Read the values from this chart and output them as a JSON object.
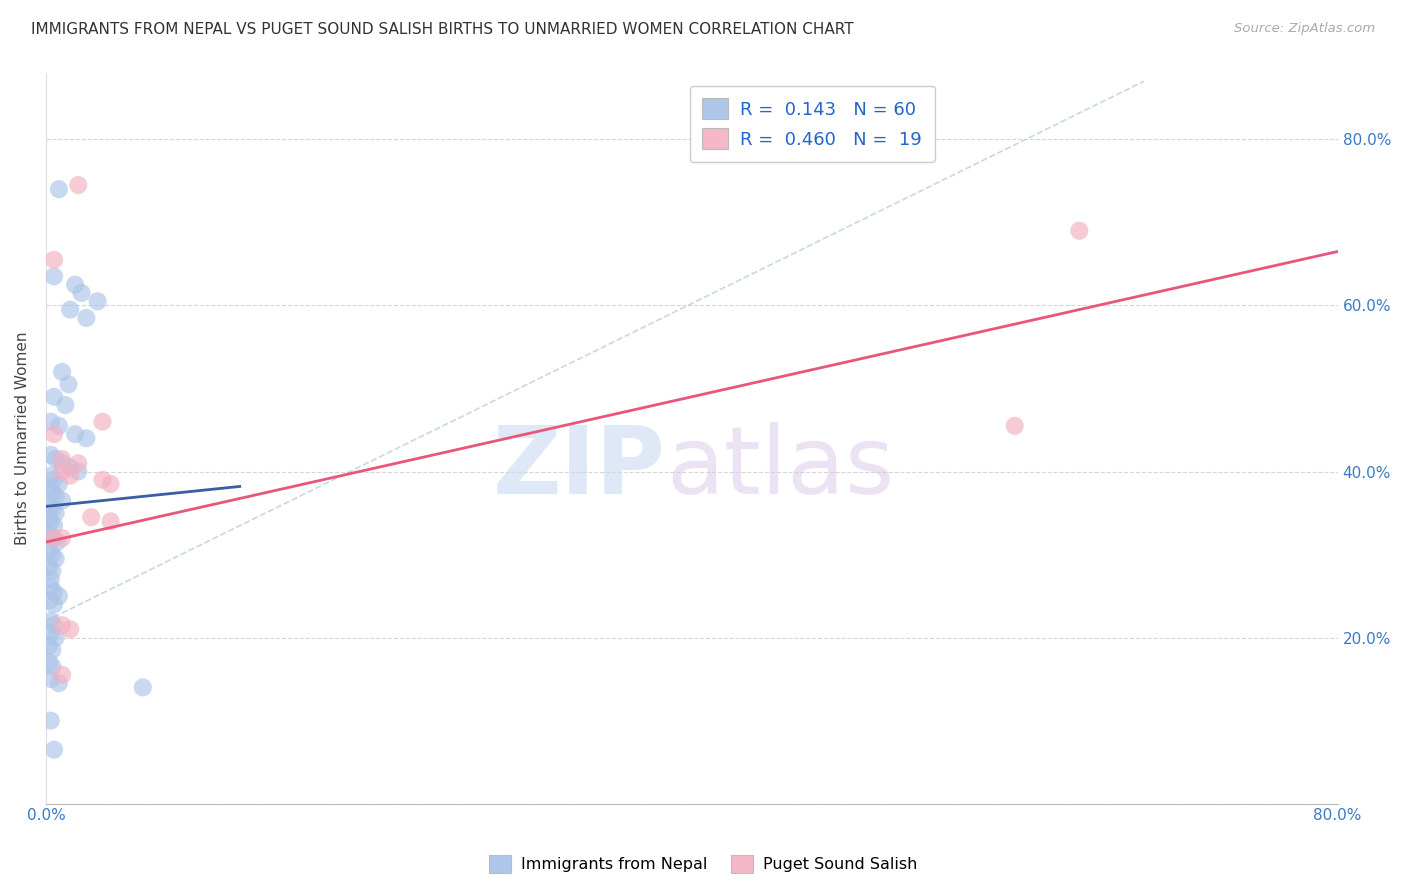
{
  "title": "IMMIGRANTS FROM NEPAL VS PUGET SOUND SALISH BIRTHS TO UNMARRIED WOMEN CORRELATION CHART",
  "source": "Source: ZipAtlas.com",
  "ylabel": "Births to Unmarried Women",
  "xlim": [
    0.0,
    0.8
  ],
  "ylim": [
    0.0,
    0.88
  ],
  "xticks": [
    0.0,
    0.1,
    0.2,
    0.3,
    0.4,
    0.5,
    0.6,
    0.7,
    0.8
  ],
  "xticklabels": [
    "0.0%",
    "",
    "",
    "",
    "",
    "",
    "",
    "",
    "80.0%"
  ],
  "yticks": [
    0.0,
    0.2,
    0.4,
    0.6,
    0.8
  ],
  "yticklabels_right": [
    "",
    "20.0%",
    "40.0%",
    "60.0%",
    "80.0%"
  ],
  "background_color": "#ffffff",
  "grid_color": "#cccccc",
  "legend_color_blue": "#aec6e8",
  "legend_color_pink": "#f4b8c8",
  "blue_scatter_color": "#aac4e8",
  "pink_scatter_color": "#f4afc0",
  "blue_line_color": "#3a5fa0",
  "pink_line_color": "#e8567a",
  "dashed_line_color": "#b8cfe0",
  "tick_label_color": "#3a7ac4",
  "blue_scatter": [
    [
      0.008,
      0.74
    ],
    [
      0.005,
      0.635
    ],
    [
      0.018,
      0.625
    ],
    [
      0.022,
      0.615
    ],
    [
      0.032,
      0.605
    ],
    [
      0.015,
      0.595
    ],
    [
      0.025,
      0.585
    ],
    [
      0.01,
      0.52
    ],
    [
      0.014,
      0.505
    ],
    [
      0.005,
      0.49
    ],
    [
      0.012,
      0.48
    ],
    [
      0.003,
      0.46
    ],
    [
      0.008,
      0.455
    ],
    [
      0.018,
      0.445
    ],
    [
      0.025,
      0.44
    ],
    [
      0.003,
      0.42
    ],
    [
      0.006,
      0.415
    ],
    [
      0.01,
      0.41
    ],
    [
      0.015,
      0.405
    ],
    [
      0.02,
      0.4
    ],
    [
      0.003,
      0.395
    ],
    [
      0.005,
      0.39
    ],
    [
      0.008,
      0.385
    ],
    [
      0.002,
      0.38
    ],
    [
      0.004,
      0.375
    ],
    [
      0.006,
      0.37
    ],
    [
      0.01,
      0.365
    ],
    [
      0.003,
      0.36
    ],
    [
      0.004,
      0.355
    ],
    [
      0.006,
      0.35
    ],
    [
      0.002,
      0.345
    ],
    [
      0.003,
      0.34
    ],
    [
      0.005,
      0.335
    ],
    [
      0.002,
      0.325
    ],
    [
      0.004,
      0.32
    ],
    [
      0.007,
      0.315
    ],
    [
      0.002,
      0.305
    ],
    [
      0.004,
      0.3
    ],
    [
      0.006,
      0.295
    ],
    [
      0.002,
      0.285
    ],
    [
      0.004,
      0.28
    ],
    [
      0.003,
      0.27
    ],
    [
      0.003,
      0.26
    ],
    [
      0.005,
      0.255
    ],
    [
      0.008,
      0.25
    ],
    [
      0.002,
      0.245
    ],
    [
      0.005,
      0.24
    ],
    [
      0.003,
      0.22
    ],
    [
      0.005,
      0.215
    ],
    [
      0.003,
      0.205
    ],
    [
      0.006,
      0.2
    ],
    [
      0.002,
      0.19
    ],
    [
      0.004,
      0.185
    ],
    [
      0.002,
      0.17
    ],
    [
      0.004,
      0.165
    ],
    [
      0.003,
      0.15
    ],
    [
      0.008,
      0.145
    ],
    [
      0.003,
      0.1
    ],
    [
      0.005,
      0.065
    ],
    [
      0.06,
      0.14
    ]
  ],
  "pink_scatter": [
    [
      0.02,
      0.745
    ],
    [
      0.005,
      0.655
    ],
    [
      0.035,
      0.46
    ],
    [
      0.005,
      0.445
    ],
    [
      0.01,
      0.415
    ],
    [
      0.02,
      0.41
    ],
    [
      0.01,
      0.4
    ],
    [
      0.015,
      0.395
    ],
    [
      0.035,
      0.39
    ],
    [
      0.04,
      0.385
    ],
    [
      0.028,
      0.345
    ],
    [
      0.01,
      0.215
    ],
    [
      0.015,
      0.21
    ],
    [
      0.01,
      0.155
    ],
    [
      0.6,
      0.455
    ],
    [
      0.64,
      0.69
    ],
    [
      0.01,
      0.32
    ],
    [
      0.04,
      0.34
    ],
    [
      0.005,
      0.32
    ]
  ],
  "blue_line": [
    [
      0.0,
      0.358
    ],
    [
      0.12,
      0.382
    ]
  ],
  "pink_line": [
    [
      0.0,
      0.315
    ],
    [
      0.8,
      0.665
    ]
  ],
  "dashed_line": [
    [
      0.0,
      0.22
    ],
    [
      0.68,
      0.87
    ]
  ]
}
